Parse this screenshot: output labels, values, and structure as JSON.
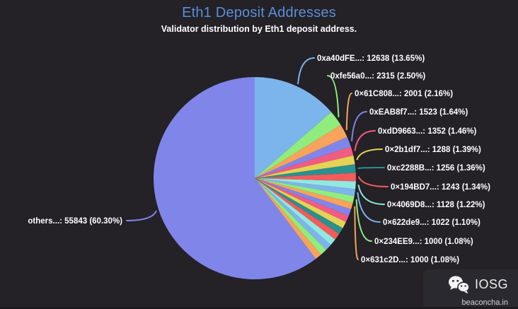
{
  "theme": {
    "background": "#242127",
    "title_color": "#5a8fd6",
    "text_color": "#ffffff",
    "palette": [
      "#7cb5ec",
      "#90ed7d",
      "#f7a35c",
      "#8085e9",
      "#f15c80",
      "#e4d354",
      "#2b908f",
      "#f45b5b",
      "#91e8e1"
    ]
  },
  "chart_data": {
    "type": "pie",
    "title": "Eth1 Deposit Addresses",
    "subtitle": "Validator distribution by Eth1 deposit address.",
    "legend": "none",
    "label_format": "address: count (percent%)",
    "slices": [
      {
        "label": "0xa40dFE...",
        "value": 12638,
        "pct": 13.65,
        "color": "#7cb5ec",
        "labeled": true,
        "side": "right"
      },
      {
        "label": "0xfe56a0...",
        "value": 2315,
        "pct": 2.5,
        "color": "#90ed7d",
        "labeled": true,
        "side": "right"
      },
      {
        "label": "0×61C808...",
        "value": 2001,
        "pct": 2.16,
        "color": "#f7a35c",
        "labeled": true,
        "side": "right"
      },
      {
        "label": "0xEAB8f7...",
        "value": 1523,
        "pct": 1.64,
        "color": "#8085e9",
        "labeled": true,
        "side": "right"
      },
      {
        "label": "0xdD9663...",
        "value": 1352,
        "pct": 1.46,
        "color": "#f15c80",
        "labeled": true,
        "side": "right"
      },
      {
        "label": "0×2b1df7...",
        "value": 1288,
        "pct": 1.39,
        "color": "#e4d354",
        "labeled": true,
        "side": "right"
      },
      {
        "label": "0xc2288B...",
        "value": 1256,
        "pct": 1.36,
        "color": "#2b908f",
        "labeled": true,
        "side": "right"
      },
      {
        "label": "0×194BD7...",
        "value": 1243,
        "pct": 1.34,
        "color": "#f45b5b",
        "labeled": true,
        "side": "right"
      },
      {
        "label": "0×4069D8...",
        "value": 1128,
        "pct": 1.22,
        "color": "#91e8e1",
        "labeled": true,
        "side": "right"
      },
      {
        "label": "0×622de9...",
        "value": 1022,
        "pct": 1.1,
        "color": "#7cb5ec",
        "labeled": true,
        "side": "right"
      },
      {
        "label": "0×234EE9...",
        "value": 1000,
        "pct": 1.08,
        "color": "#90ed7d",
        "labeled": true,
        "side": "right"
      },
      {
        "label": "0×631c2D...",
        "value": 1000,
        "pct": 1.08,
        "color": "#f7a35c",
        "labeled": true,
        "side": "right"
      },
      {
        "label": "",
        "pct": 1.08,
        "color": "#8085e9",
        "labeled": false
      },
      {
        "label": "",
        "pct": 1.08,
        "color": "#f15c80",
        "labeled": false
      },
      {
        "label": "",
        "pct": 1.08,
        "color": "#e4d354",
        "labeled": false
      },
      {
        "label": "",
        "pct": 1.08,
        "color": "#2b908f",
        "labeled": false
      },
      {
        "label": "",
        "pct": 1.08,
        "color": "#f45b5b",
        "labeled": false
      },
      {
        "label": "",
        "pct": 1.08,
        "color": "#91e8e1",
        "labeled": false
      },
      {
        "label": "",
        "pct": 1.08,
        "color": "#7cb5ec",
        "labeled": false
      },
      {
        "label": "",
        "pct": 1.08,
        "color": "#90ed7d",
        "labeled": false
      },
      {
        "label": "",
        "pct": 1.08,
        "color": "#f7a35c",
        "labeled": false
      },
      {
        "label": "others...",
        "value": 55843,
        "pct": 60.3,
        "color": "#8085e9",
        "labeled": true,
        "side": "left"
      }
    ]
  },
  "watermark": {
    "brand": "IOSG",
    "site": "beaconcha.in",
    "icon": "wechat-icon"
  }
}
